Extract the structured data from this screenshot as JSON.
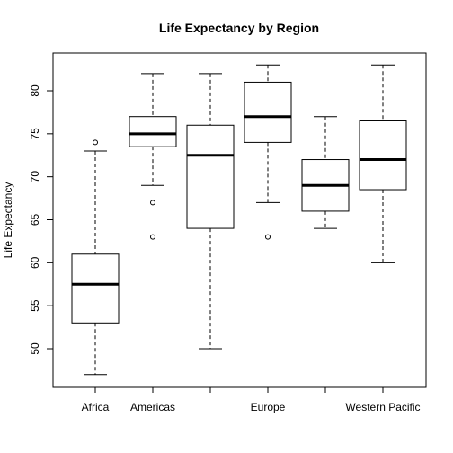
{
  "chart_data": {
    "type": "boxplot",
    "title": "Life Expectancy by Region",
    "xlabel": "",
    "ylabel": "Life Expectancy",
    "ylim": [
      45,
      84
    ],
    "y_ticks": [
      50,
      55,
      60,
      65,
      70,
      75,
      80
    ],
    "categories": [
      "Africa",
      "Americas",
      "",
      "Europe",
      "",
      "Western Pacific"
    ],
    "boxes": [
      {
        "min": 47,
        "q1": 53,
        "median": 57.5,
        "q3": 61,
        "max": 73,
        "outliers": [
          74
        ]
      },
      {
        "min": 69,
        "q1": 73.5,
        "median": 75,
        "q3": 77,
        "max": 82,
        "outliers": [
          67,
          63
        ]
      },
      {
        "min": 50,
        "q1": 64,
        "median": 72.5,
        "q3": 76,
        "max": 82,
        "outliers": []
      },
      {
        "min": 67,
        "q1": 74,
        "median": 77,
        "q3": 81,
        "max": 83,
        "outliers": [
          63
        ]
      },
      {
        "min": 64,
        "q1": 66,
        "median": 69,
        "q3": 72,
        "max": 77,
        "outliers": []
      },
      {
        "min": 60,
        "q1": 68.5,
        "median": 72,
        "q3": 76.5,
        "max": 83,
        "outliers": []
      }
    ],
    "grid": false,
    "legend": "none"
  }
}
